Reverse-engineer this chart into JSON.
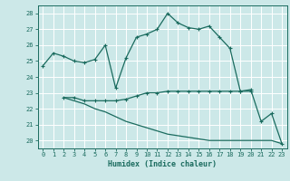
{
  "xlabel": "Humidex (Indice chaleur)",
  "bg_color": "#cce8e8",
  "grid_color": "#ffffff",
  "line_color": "#1a6b5e",
  "xlim": [
    -0.5,
    23.5
  ],
  "ylim": [
    19.5,
    28.5
  ],
  "yticks": [
    20,
    21,
    22,
    23,
    24,
    25,
    26,
    27,
    28
  ],
  "xticks": [
    0,
    1,
    2,
    3,
    4,
    5,
    6,
    7,
    8,
    9,
    10,
    11,
    12,
    13,
    14,
    15,
    16,
    17,
    18,
    19,
    20,
    21,
    22,
    23
  ],
  "line1_x": [
    0,
    1,
    2,
    3,
    4,
    5,
    6,
    7,
    8,
    9,
    10,
    11,
    12,
    13,
    14,
    15,
    16,
    17,
    18,
    19,
    20,
    21,
    22,
    23
  ],
  "line1_y": [
    24.7,
    25.5,
    25.3,
    25.0,
    24.9,
    25.1,
    26.0,
    23.3,
    25.2,
    26.5,
    26.7,
    27.0,
    28.0,
    27.4,
    27.1,
    27.0,
    27.2,
    26.5,
    25.8,
    23.1,
    23.2,
    21.2,
    21.7,
    19.8
  ],
  "line2_x": [
    2,
    3,
    4,
    5,
    6,
    7,
    8,
    9,
    10,
    11,
    12,
    13,
    14,
    15,
    16,
    17,
    18,
    19,
    20
  ],
  "line2_y": [
    22.7,
    22.7,
    22.5,
    22.5,
    22.5,
    22.5,
    22.6,
    22.8,
    23.0,
    23.0,
    23.1,
    23.1,
    23.1,
    23.1,
    23.1,
    23.1,
    23.1,
    23.1,
    23.1
  ],
  "line3_x": [
    2,
    3,
    4,
    5,
    6,
    7,
    8,
    9,
    10,
    11,
    12,
    13,
    14,
    15,
    16,
    17,
    18,
    19,
    20,
    21,
    22,
    23
  ],
  "line3_y": [
    22.7,
    22.5,
    22.3,
    22.0,
    21.8,
    21.5,
    21.2,
    21.0,
    20.8,
    20.6,
    20.4,
    20.3,
    20.2,
    20.1,
    20.0,
    20.0,
    20.0,
    20.0,
    20.0,
    20.0,
    20.0,
    19.8
  ]
}
